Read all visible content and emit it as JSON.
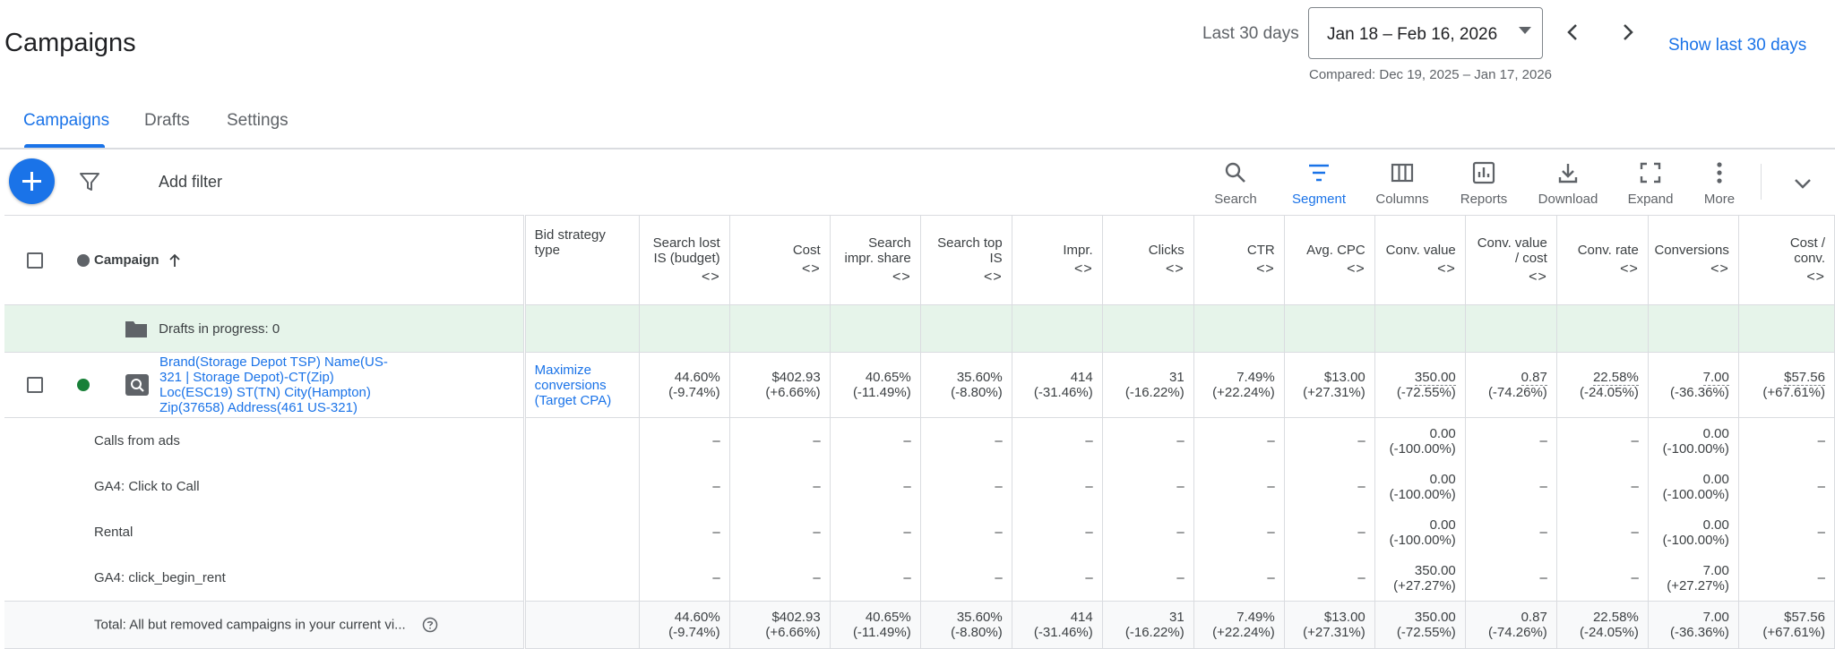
{
  "header": {
    "title": "Campaigns",
    "range_label": "Last 30 days",
    "date_range": "Jan 18 – Feb 16, 2026",
    "show_last": "Show last 30 days",
    "compared": "Compared: Dec 19, 2025 – Jan 17, 2026"
  },
  "tabs": [
    {
      "label": "Campaigns"
    },
    {
      "label": "Drafts"
    },
    {
      "label": "Settings"
    }
  ],
  "toolbar": {
    "add_filter": "Add filter",
    "tools": [
      {
        "label": "Search",
        "icon": "search-icon"
      },
      {
        "label": "Segment",
        "icon": "segment-icon"
      },
      {
        "label": "Columns",
        "icon": "columns-icon"
      },
      {
        "label": "Reports",
        "icon": "reports-icon"
      },
      {
        "label": "Download",
        "icon": "download-icon"
      },
      {
        "label": "Expand",
        "icon": "expand-icon"
      },
      {
        "label": "More",
        "icon": "more-icon"
      }
    ]
  },
  "table": {
    "campaign_header": "Campaign",
    "bid_header": "Bid strategy type",
    "metric_headers": [
      [
        "Search lost",
        "IS (budget)"
      ],
      [
        "Cost"
      ],
      [
        "Search",
        "impr. share"
      ],
      [
        "Search top",
        "IS"
      ],
      [
        "Impr."
      ],
      [
        "Clicks"
      ],
      [
        "CTR"
      ],
      [
        "Avg. CPC"
      ],
      [
        "Conv. value"
      ],
      [
        "Conv. value",
        "/ cost"
      ],
      [
        "Conv. rate"
      ],
      [
        "Conversions"
      ],
      [
        "Cost /",
        "conv."
      ]
    ],
    "arrows": "<>",
    "draft_row": "Drafts in progress: 0",
    "campaign": {
      "name_lines": [
        "Brand(Storage Depot TSP) Name(US-",
        "321 | Storage Depot)-CT(Zip)",
        "Loc(ESC19) ST(TN) City(Hampton)",
        "Zip(37658) Address(461 US-321)"
      ],
      "status_color": "#188038",
      "bid_lines": [
        "Maximize",
        "conversions",
        "(Target CPA)"
      ],
      "metrics": [
        [
          "44.60%",
          "(-9.74%)"
        ],
        [
          "$402.93",
          "(+6.66%)"
        ],
        [
          "40.65%",
          "(-11.49%)"
        ],
        [
          "35.60%",
          "(-8.80%)"
        ],
        [
          "414",
          "(-31.46%)"
        ],
        [
          "31",
          "(-16.22%)"
        ],
        [
          "7.49%",
          "(+22.24%)"
        ],
        [
          "$13.00",
          "(+27.31%)"
        ],
        [
          "350.00",
          "(-72.55%)"
        ],
        [
          "0.87",
          "(-74.26%)"
        ],
        [
          "22.58%",
          "(-24.05%)"
        ],
        [
          "7.00",
          "(-36.36%)"
        ],
        [
          "$57.56",
          "(+67.61%)"
        ]
      ]
    },
    "sub_rows": [
      {
        "name": "Calls from ads",
        "metrics": [
          [
            "–"
          ],
          [
            "–"
          ],
          [
            "–"
          ],
          [
            "–"
          ],
          [
            "–"
          ],
          [
            "–"
          ],
          [
            "–"
          ],
          [
            "–"
          ],
          [
            "0.00",
            "(-100.00%)"
          ],
          [
            "–"
          ],
          [
            "–"
          ],
          [
            "0.00",
            "(-100.00%)"
          ],
          [
            "–"
          ]
        ]
      },
      {
        "name": "GA4: Click to Call",
        "metrics": [
          [
            "–"
          ],
          [
            "–"
          ],
          [
            "–"
          ],
          [
            "–"
          ],
          [
            "–"
          ],
          [
            "–"
          ],
          [
            "–"
          ],
          [
            "–"
          ],
          [
            "0.00",
            "(-100.00%)"
          ],
          [
            "–"
          ],
          [
            "–"
          ],
          [
            "0.00",
            "(-100.00%)"
          ],
          [
            "–"
          ]
        ]
      },
      {
        "name": "Rental",
        "metrics": [
          [
            "–"
          ],
          [
            "–"
          ],
          [
            "–"
          ],
          [
            "–"
          ],
          [
            "–"
          ],
          [
            "–"
          ],
          [
            "–"
          ],
          [
            "–"
          ],
          [
            "0.00",
            "(-100.00%)"
          ],
          [
            "–"
          ],
          [
            "–"
          ],
          [
            "0.00",
            "(-100.00%)"
          ],
          [
            "–"
          ]
        ]
      },
      {
        "name": "GA4: click_begin_rent",
        "metrics": [
          [
            "–"
          ],
          [
            "–"
          ],
          [
            "–"
          ],
          [
            "–"
          ],
          [
            "–"
          ],
          [
            "–"
          ],
          [
            "–"
          ],
          [
            "–"
          ],
          [
            "350.00",
            "(+27.27%)"
          ],
          [
            "–"
          ],
          [
            "–"
          ],
          [
            "7.00",
            "(+27.27%)"
          ],
          [
            "–"
          ]
        ]
      }
    ],
    "total": {
      "label": "Total: All but removed campaigns in your current vi...",
      "metrics": [
        [
          "44.60%",
          "(-9.74%)"
        ],
        [
          "$402.93",
          "(+6.66%)"
        ],
        [
          "40.65%",
          "(-11.49%)"
        ],
        [
          "35.60%",
          "(-8.80%)"
        ],
        [
          "414",
          "(-31.46%)"
        ],
        [
          "31",
          "(-16.22%)"
        ],
        [
          "7.49%",
          "(+22.24%)"
        ],
        [
          "$13.00",
          "(+27.31%)"
        ],
        [
          "350.00",
          "(-72.55%)"
        ],
        [
          "0.87",
          "(-74.26%)"
        ],
        [
          "22.58%",
          "(-24.05%)"
        ],
        [
          "7.00",
          "(-36.36%)"
        ],
        [
          "$57.56",
          "(+67.61%)"
        ]
      ]
    }
  },
  "colors": {
    "accent": "#1a73e8",
    "draft_bg": "#e6f4ea",
    "status_enabled": "#188038"
  }
}
